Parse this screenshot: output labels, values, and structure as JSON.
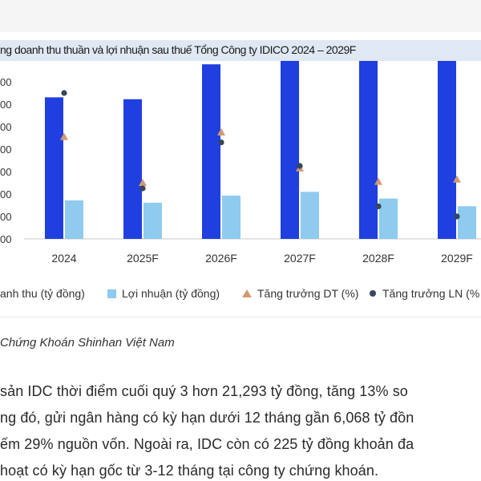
{
  "title": "ng doanh thu thuần và lợi nhuận sau thuế Tổng Công ty IDICO 2024 – 2029F",
  "chart_data": {
    "type": "bar",
    "categories": [
      "2024",
      "2025F",
      "2026F",
      "2027F",
      "2028F",
      "2029F"
    ],
    "y_tick_labels": [
      "00",
      "00",
      "00",
      "00",
      "00",
      "00",
      "00",
      "00"
    ],
    "grid": false,
    "series": [
      {
        "name": "anh thu (tỷ đồng)",
        "kind": "bar",
        "color": "#1f3fe0",
        "values": [
          4420,
          4360,
          5450,
          5800,
          5740,
          5720
        ]
      },
      {
        "name": "Lợi nhuận (tỷ đồng)",
        "kind": "bar",
        "color": "#8ecbef",
        "values": [
          1200,
          1130,
          1350,
          1470,
          1260,
          1020
        ]
      },
      {
        "name": "Tăng trưởng DT (%)",
        "kind": "triangle",
        "color": "#d29a74",
        "values": [
          4.55,
          2.5,
          4.75,
          3.15,
          2.55,
          2.65
        ]
      },
      {
        "name": "Tăng trưởng LN (%",
        "kind": "dot",
        "color": "#37475a",
        "values": [
          6.5,
          2.25,
          4.3,
          3.25,
          1.45,
          1.0
        ]
      }
    ],
    "legend_position": "bottom",
    "ylim": [
      0,
      7000
    ]
  },
  "legend": {
    "revenue": "anh thu (tỷ đồng)",
    "profit": "Lợi nhuận (tỷ đồng)",
    "rev_growth": "Tăng trưởng DT (%)",
    "profit_growth": "Tăng trưởng LN (%"
  },
  "source": "Chứng Khoán Shinhan Việt Nam",
  "body_lines": [
    "sản IDC thời điểm cuối quý 3 hơn 21,293 tỷ đồng, tăng 13% so",
    "ng đó, gửi ngân hàng có kỳ hạn dưới 12 tháng gần 6,068 tỷ đồn",
    "ếm 29% nguồn vốn. Ngoài ra, IDC còn có 225 tỷ đồng khoản đa",
    "hoạt có kỳ hạn gốc từ 3-12 tháng tại công ty chứng khoán."
  ],
  "colors": {
    "revenue_bar": "#1f3fe0",
    "profit_bar": "#8ecbef",
    "rev_growth_marker": "#d29a74",
    "profit_growth_marker": "#37475a",
    "title_bar_bg": "#dfe8f3"
  }
}
